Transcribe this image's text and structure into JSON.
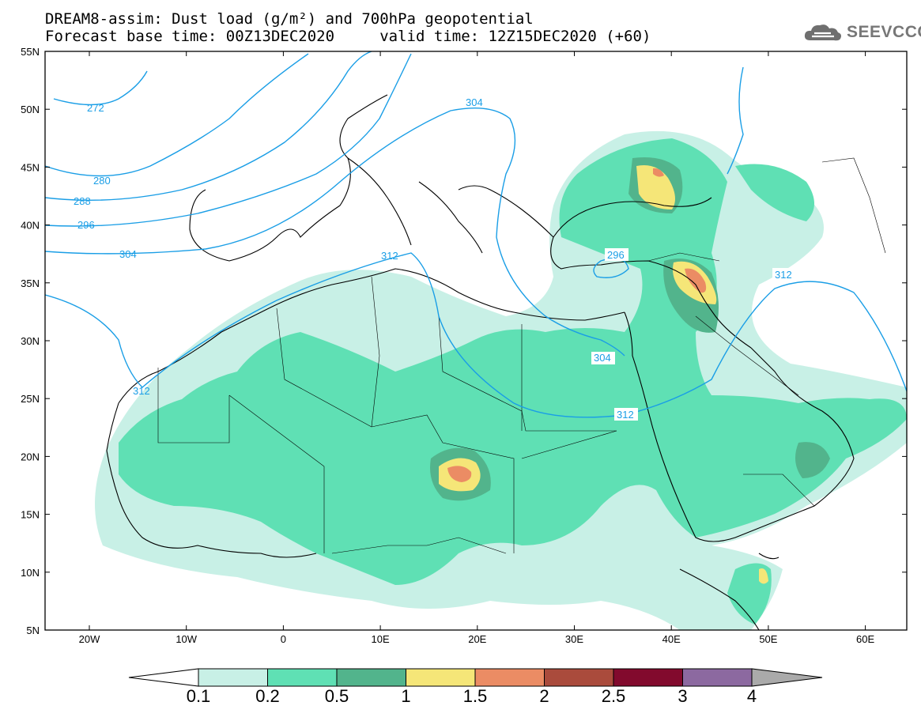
{
  "header": {
    "title_line1": "DREAM8-assim: Dust load (g/m²) and 700hPa geopotential",
    "title_line2": "Forecast base time: 00Z13DEC2020     valid time: 12Z15DEC2020 (+60)"
  },
  "logo": {
    "text": "SEEVCCC",
    "icon": "cloud-icon"
  },
  "map": {
    "lat_labels": [
      "55N",
      "50N",
      "45N",
      "40N",
      "35N",
      "30N",
      "25N",
      "20N",
      "15N",
      "10N",
      "5N"
    ],
    "lon_labels": [
      "20W",
      "10W",
      "0",
      "10E",
      "20E",
      "30E",
      "40E",
      "50E",
      "60E"
    ],
    "contour_labels": [
      "272",
      "280",
      "288",
      "296",
      "304",
      "304",
      "312",
      "312",
      "296",
      "304",
      "312",
      "312"
    ]
  },
  "colorbar": {
    "labels": [
      "0.1",
      "0.2",
      "0.5",
      "1",
      "1.5",
      "2",
      "2.5",
      "3",
      "4"
    ],
    "colors": [
      "#c8f0e6",
      "#5fe0b4",
      "#52b48c",
      "#f5e678",
      "#eb8c64",
      "#aa4b3c",
      "#820a2d",
      "#8c69a0"
    ],
    "over_color": "#aaaaaa",
    "under_color": "#ffffff"
  }
}
